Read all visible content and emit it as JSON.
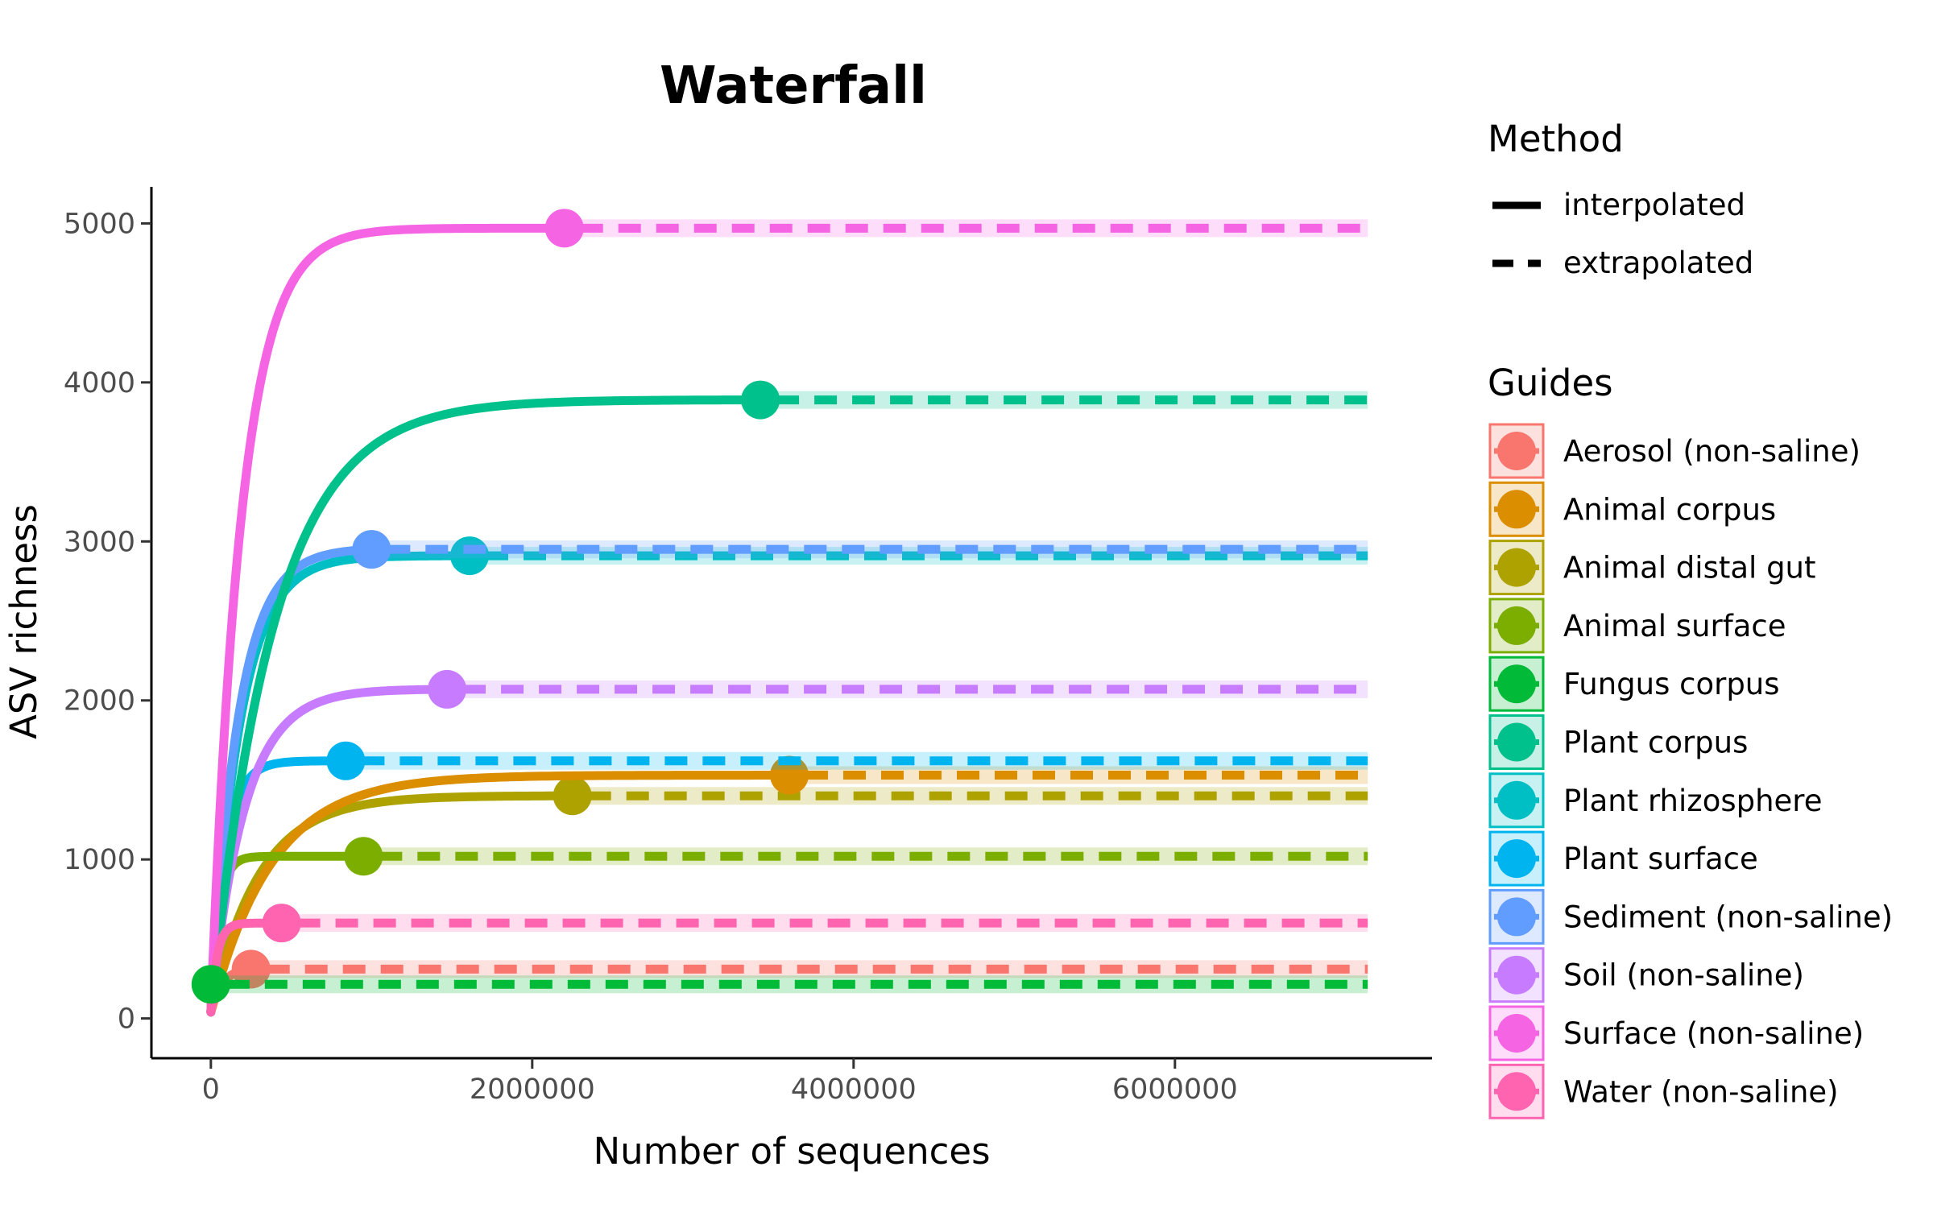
{
  "chart_data": {
    "type": "line",
    "title": "Waterfall",
    "xlabel": "Number of sequences",
    "ylabel": "ASV richness",
    "xlim": [
      -370000,
      7600000
    ],
    "ylim": [
      -250,
      5230
    ],
    "x_ticks": [
      0,
      2000000,
      4000000,
      6000000
    ],
    "x_tick_labels": [
      "0",
      "2000000",
      "4000000",
      "6000000"
    ],
    "y_ticks": [
      0,
      1000,
      2000,
      3000,
      4000,
      5000
    ],
    "y_tick_labels": [
      "0",
      "1000",
      "2000",
      "3000",
      "4000",
      "5000"
    ],
    "x_end": 7200000,
    "grid": false,
    "legend_placement": "right",
    "method_legend": {
      "title": "Method",
      "items": [
        {
          "label": "interpolated",
          "style": "solid"
        },
        {
          "label": "extrapolated",
          "style": "dashed"
        }
      ]
    },
    "guides_legend_title": "Guides",
    "series": [
      {
        "name": "Aerosol (non-saline)",
        "color": "#F8766D",
        "n_obs": 250000,
        "richness": 310,
        "start": 40,
        "k": 70000
      },
      {
        "name": "Animal corpus",
        "color": "#DB8E00",
        "n_obs": 3600000,
        "richness": 1530,
        "start": 40,
        "k": 380000
      },
      {
        "name": "Animal distal gut",
        "color": "#AEA200",
        "n_obs": 2250000,
        "richness": 1400,
        "start": 40,
        "k": 300000
      },
      {
        "name": "Animal surface",
        "color": "#7CAE00",
        "n_obs": 950000,
        "richness": 1020,
        "start": 40,
        "k": 50000
      },
      {
        "name": "Fungus corpus",
        "color": "#00BA38",
        "n_obs": 0,
        "richness": 215,
        "start": 215,
        "k": 10000
      },
      {
        "name": "Plant corpus",
        "color": "#00C08B",
        "n_obs": 3420000,
        "richness": 3890,
        "start": 40,
        "k": 390000
      },
      {
        "name": "Plant rhizosphere",
        "color": "#00BFC4",
        "n_obs": 1610000,
        "richness": 2910,
        "start": 40,
        "k": 180000
      },
      {
        "name": "Plant surface",
        "color": "#00B4F0",
        "n_obs": 840000,
        "richness": 1620,
        "start": 40,
        "k": 90000
      },
      {
        "name": "Sediment (non-saline)",
        "color": "#619CFF",
        "n_obs": 1000000,
        "richness": 2950,
        "start": 40,
        "k": 170000
      },
      {
        "name": "Soil (non-saline)",
        "color": "#C77CFF",
        "n_obs": 1470000,
        "richness": 2070,
        "start": 40,
        "k": 210000
      },
      {
        "name": "Surface (non-saline)",
        "color": "#F564E3",
        "n_obs": 2200000,
        "richness": 4970,
        "start": 40,
        "k": 190000
      },
      {
        "name": "Water (non-saline)",
        "color": "#FF64B0",
        "n_obs": 440000,
        "richness": 600,
        "start": 40,
        "k": 40000
      }
    ]
  }
}
